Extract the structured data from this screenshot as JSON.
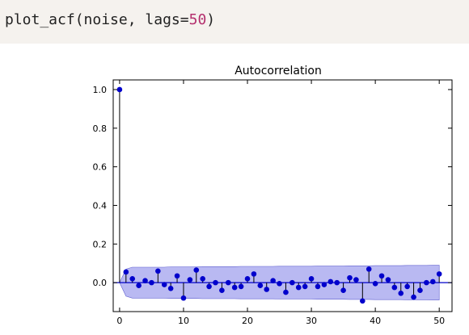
{
  "code": {
    "func": "plot_acf",
    "open": "(",
    "arg1": "noise",
    "sep": ", ",
    "kw": "lags=",
    "kwval": "50",
    "close": ")"
  },
  "chart_data": {
    "type": "stem",
    "title": "Autocorrelation",
    "xlabel": "",
    "ylabel": "",
    "xlim": [
      -1,
      52
    ],
    "ylim": [
      -0.15,
      1.05
    ],
    "xticks": [
      "0",
      "10",
      "20",
      "30",
      "40",
      "50"
    ],
    "yticks": [
      "0.0",
      "0.2",
      "0.4",
      "0.6",
      "0.8",
      "1.0"
    ],
    "lags": [
      0,
      1,
      2,
      3,
      4,
      5,
      6,
      7,
      8,
      9,
      10,
      11,
      12,
      13,
      14,
      15,
      16,
      17,
      18,
      19,
      20,
      21,
      22,
      23,
      24,
      25,
      26,
      27,
      28,
      29,
      30,
      31,
      32,
      33,
      34,
      35,
      36,
      37,
      38,
      39,
      40,
      41,
      42,
      43,
      44,
      45,
      46,
      47,
      48,
      49,
      50
    ],
    "values": [
      1.0,
      0.055,
      0.02,
      -0.015,
      0.01,
      0.0,
      0.06,
      -0.01,
      -0.03,
      0.035,
      -0.08,
      0.015,
      0.065,
      0.02,
      -0.02,
      0.0,
      -0.04,
      0.0,
      -0.025,
      -0.02,
      0.02,
      0.045,
      -0.015,
      -0.035,
      0.01,
      -0.005,
      -0.05,
      0.0,
      -0.025,
      -0.02,
      0.02,
      -0.02,
      -0.01,
      0.005,
      0.0,
      -0.04,
      0.025,
      0.015,
      -0.095,
      0.07,
      -0.005,
      0.035,
      0.015,
      -0.025,
      -0.055,
      -0.02,
      -0.075,
      -0.04,
      0.0,
      0.005,
      0.045
    ],
    "confint_upper": [
      0.0,
      0.07,
      0.08,
      0.08,
      0.08,
      0.08,
      0.08,
      0.08,
      0.082,
      0.082,
      0.082,
      0.082,
      0.082,
      0.083,
      0.083,
      0.083,
      0.083,
      0.083,
      0.083,
      0.084,
      0.084,
      0.084,
      0.084,
      0.084,
      0.084,
      0.085,
      0.085,
      0.085,
      0.085,
      0.085,
      0.085,
      0.086,
      0.086,
      0.086,
      0.086,
      0.086,
      0.087,
      0.087,
      0.087,
      0.087,
      0.088,
      0.088,
      0.088,
      0.088,
      0.088,
      0.089,
      0.089,
      0.089,
      0.089,
      0.09,
      0.09
    ],
    "colors": {
      "marker": "#0000cc",
      "stem": "#000000",
      "band": "#8080e8",
      "zeroline": "#0000cc"
    }
  }
}
